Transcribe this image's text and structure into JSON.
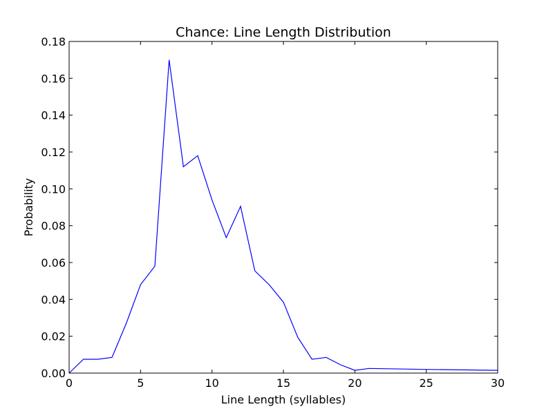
{
  "chart_data": {
    "type": "line",
    "title": "Chance: Line Length Distribution",
    "xlabel": "Line Length (syllables)",
    "ylabel": "Probability",
    "xlim": [
      0,
      30
    ],
    "ylim": [
      0,
      0.18
    ],
    "x_ticks": [
      "0",
      "5",
      "10",
      "15",
      "20",
      "25",
      "30"
    ],
    "y_ticks": [
      "0.00",
      "0.02",
      "0.04",
      "0.06",
      "0.08",
      "0.10",
      "0.12",
      "0.14",
      "0.16",
      "0.18"
    ],
    "x_tick_values": [
      0,
      5,
      10,
      15,
      20,
      25,
      30
    ],
    "y_tick_values": [
      0,
      0.02,
      0.04,
      0.06,
      0.08,
      0.1,
      0.12,
      0.14,
      0.16,
      0.18
    ],
    "grid": false,
    "line_color": "#0000ff",
    "series": [
      {
        "x": [
          0,
          1,
          2,
          3,
          4,
          5,
          6,
          7,
          8,
          9,
          10,
          11,
          12,
          13,
          14,
          15,
          16,
          17,
          18,
          19,
          20,
          21,
          25,
          30
        ],
        "y": [
          0.0,
          0.0075,
          0.0075,
          0.0085,
          0.027,
          0.048,
          0.058,
          0.17,
          0.112,
          0.118,
          0.094,
          0.0735,
          0.0905,
          0.0555,
          0.048,
          0.0385,
          0.0195,
          0.0075,
          0.0085,
          0.0045,
          0.0015,
          0.0025,
          0.002,
          0.0015
        ]
      }
    ]
  }
}
